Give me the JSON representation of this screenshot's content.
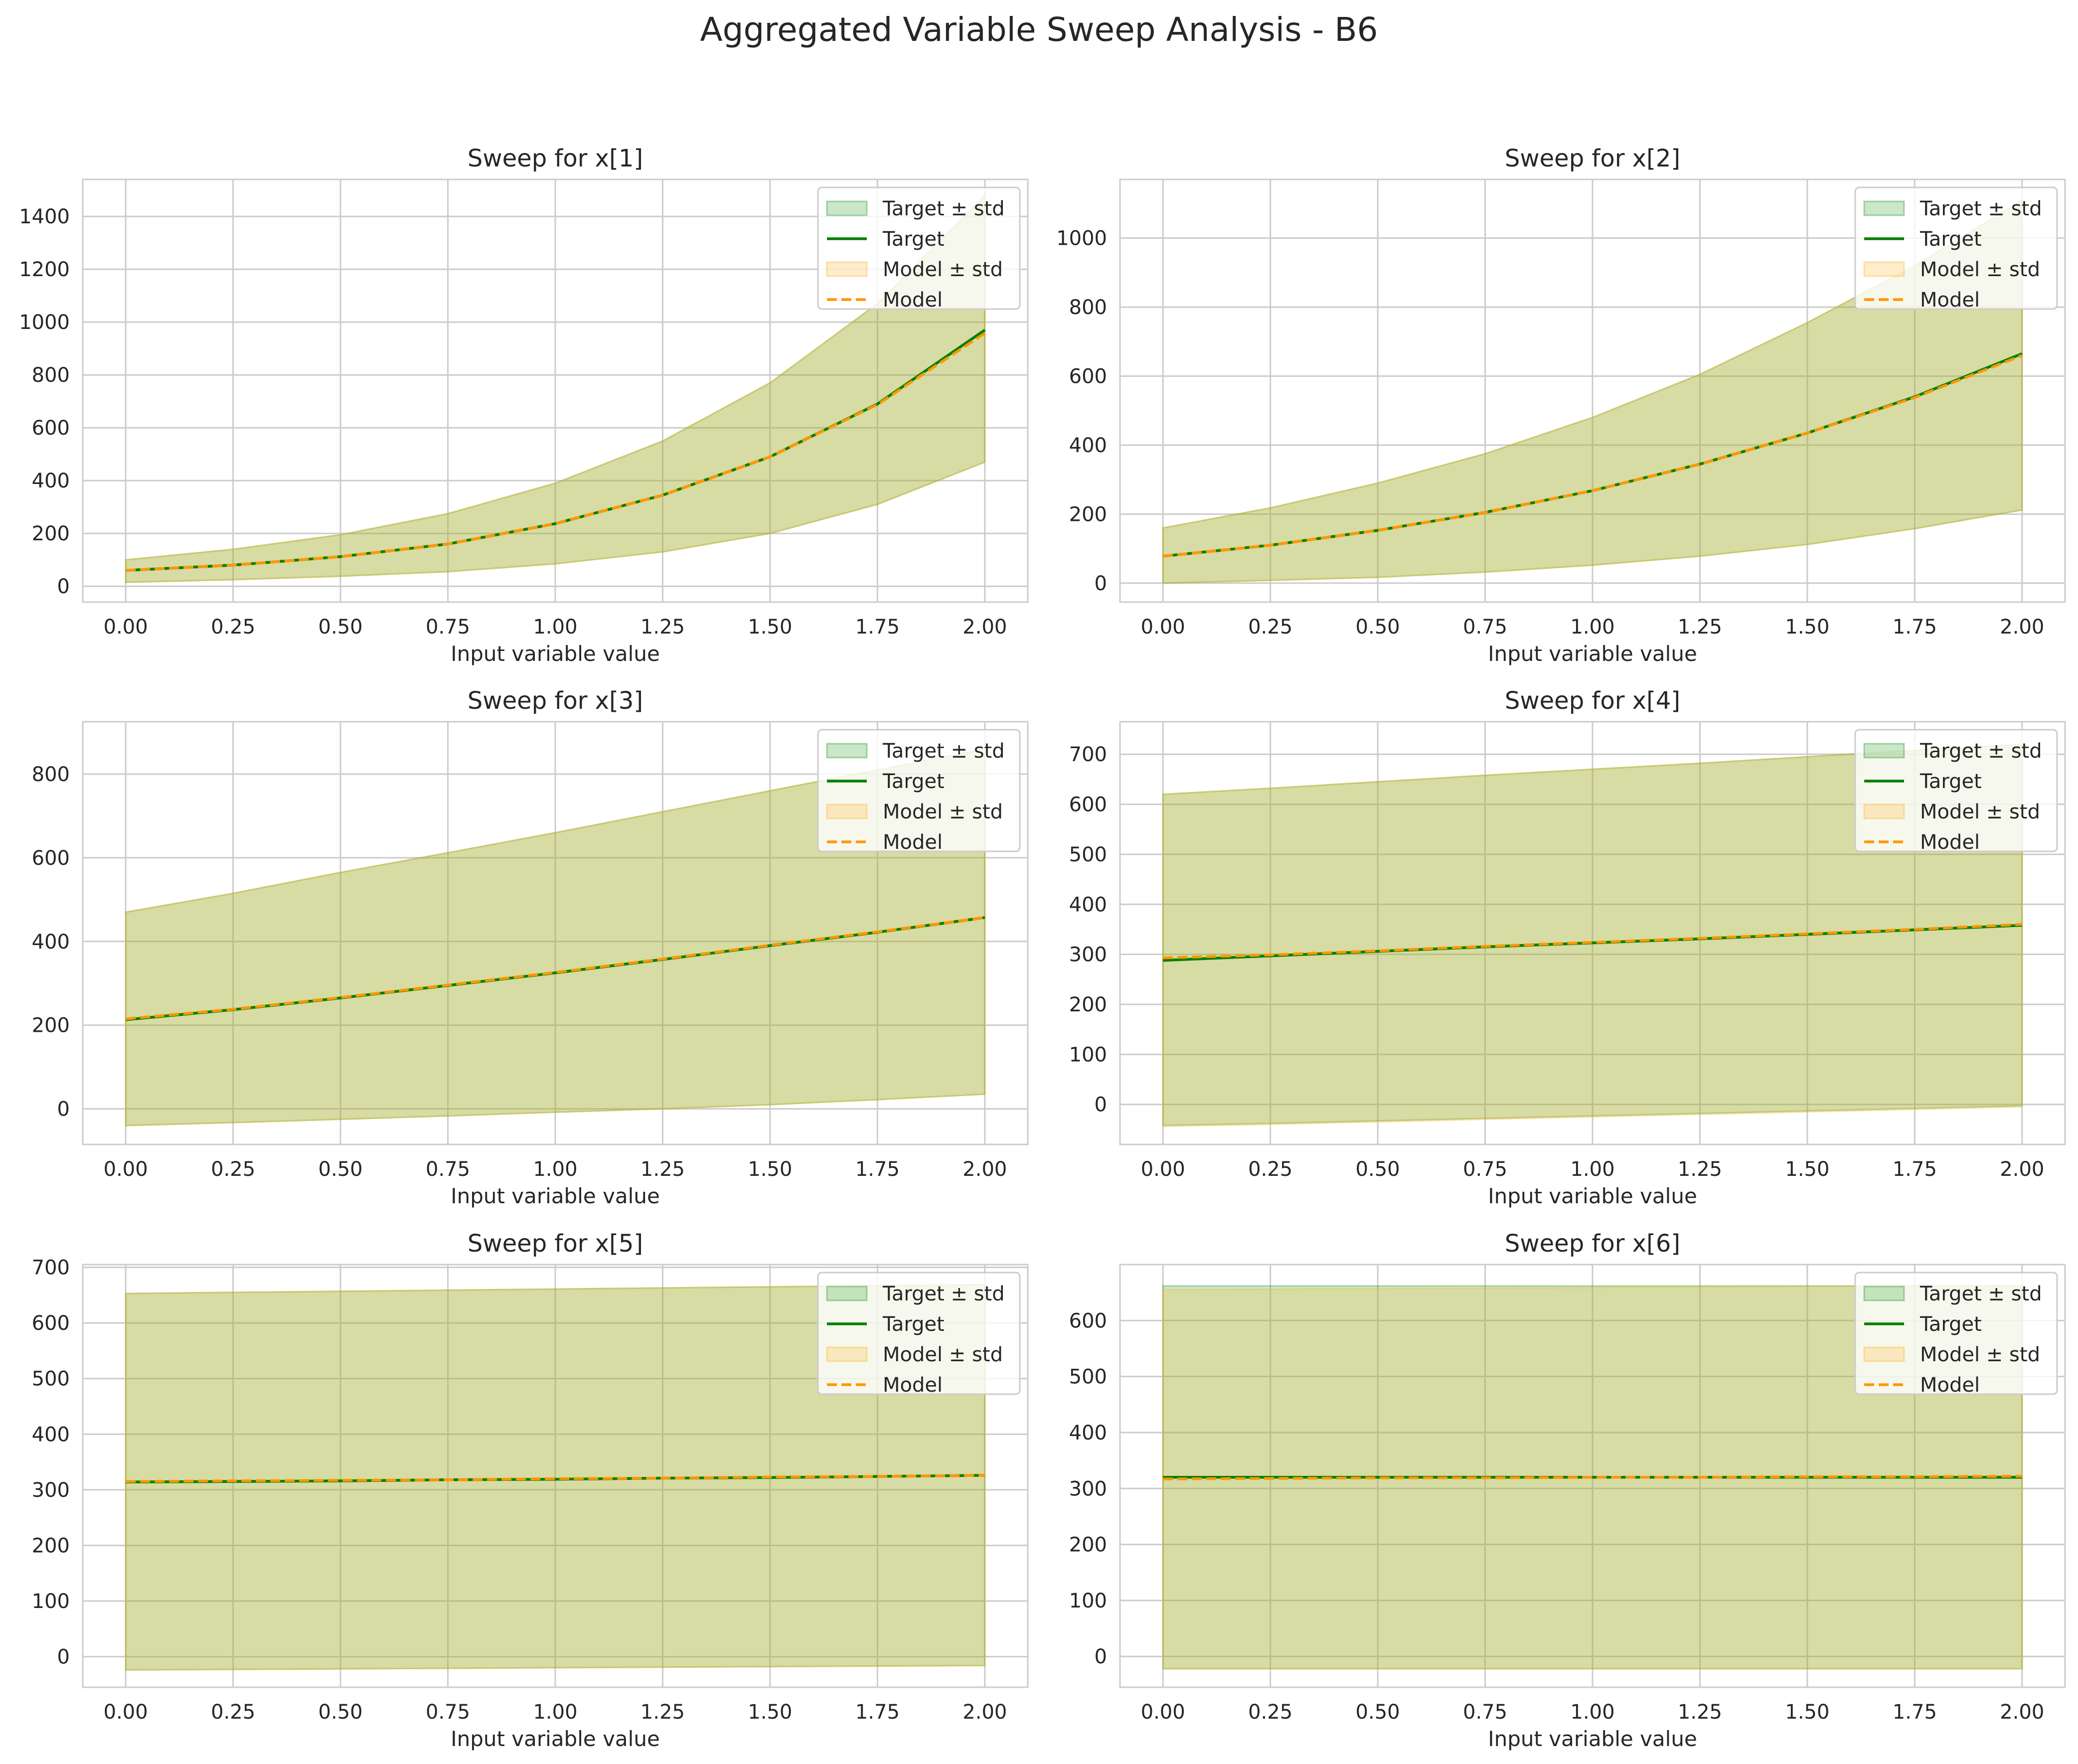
{
  "figure": {
    "title": "Aggregated Variable Sweep Analysis - B6"
  },
  "colors": {
    "target_line": "#008000",
    "target_band": "#2ca02c",
    "model_line": "#ff9800",
    "model_band": "#ffb732",
    "grid": "#cccccc",
    "axes_edge": "#cccccc"
  },
  "legend_labels": [
    "Target ± std",
    "Target",
    "Model ± std",
    "Model"
  ],
  "chart_data": [
    {
      "type": "line",
      "title": "Sweep for x[1]",
      "xlabel": "Input variable value",
      "ylabel": "",
      "grid": true,
      "legend": "upper right",
      "xlim": [
        -0.1,
        2.1
      ],
      "ylim": [
        -60,
        1540
      ],
      "xticks": [
        "0.00",
        "0.25",
        "0.50",
        "0.75",
        "1.00",
        "1.25",
        "1.50",
        "1.75",
        "2.00"
      ],
      "yticks": [
        "0",
        "200",
        "400",
        "600",
        "800",
        "1000",
        "1200",
        "1400"
      ],
      "x": [
        0,
        0.25,
        0.5,
        0.75,
        1.0,
        1.25,
        1.5,
        1.75,
        2.0
      ],
      "series": [
        {
          "name": "Target",
          "values": [
            60,
            80,
            112,
            160,
            237,
            345,
            490,
            690,
            970
          ]
        },
        {
          "name": "Model",
          "values": [
            60,
            80,
            112,
            160,
            237,
            345,
            490,
            688,
            958
          ]
        }
      ],
      "bands": [
        {
          "name": "Target ± std",
          "lower": [
            15,
            25,
            38,
            55,
            85,
            130,
            200,
            310,
            470
          ],
          "upper": [
            100,
            140,
            195,
            275,
            390,
            550,
            770,
            1070,
            1480
          ]
        },
        {
          "name": "Model ± std",
          "lower": [
            15,
            25,
            38,
            55,
            85,
            130,
            200,
            310,
            470
          ],
          "upper": [
            100,
            140,
            195,
            275,
            390,
            550,
            770,
            1070,
            1470
          ]
        }
      ]
    },
    {
      "type": "line",
      "title": "Sweep for x[2]",
      "xlabel": "Input variable value",
      "ylabel": "",
      "grid": true,
      "legend": "upper right",
      "xlim": [
        -0.1,
        2.1
      ],
      "ylim": [
        -55,
        1170
      ],
      "xticks": [
        "0.00",
        "0.25",
        "0.50",
        "0.75",
        "1.00",
        "1.25",
        "1.50",
        "1.75",
        "2.00"
      ],
      "yticks": [
        "0",
        "200",
        "400",
        "600",
        "800",
        "1000"
      ],
      "x": [
        0,
        0.25,
        0.5,
        0.75,
        1.0,
        1.25,
        1.5,
        1.75,
        2.0
      ],
      "series": [
        {
          "name": "Target",
          "values": [
            78,
            110,
            153,
            205,
            268,
            345,
            435,
            540,
            665
          ]
        },
        {
          "name": "Model",
          "values": [
            78,
            110,
            153,
            205,
            268,
            345,
            435,
            538,
            660
          ]
        }
      ],
      "bands": [
        {
          "name": "Target ± std",
          "lower": [
            0,
            8,
            17,
            32,
            52,
            78,
            112,
            158,
            212
          ],
          "upper": [
            160,
            218,
            290,
            375,
            480,
            605,
            755,
            920,
            1110
          ]
        },
        {
          "name": "Model ± std",
          "lower": [
            0,
            8,
            17,
            32,
            52,
            78,
            112,
            158,
            212
          ],
          "upper": [
            160,
            218,
            290,
            375,
            480,
            605,
            755,
            920,
            1105
          ]
        }
      ]
    },
    {
      "type": "line",
      "title": "Sweep for x[3]",
      "xlabel": "Input variable value",
      "ylabel": "",
      "grid": true,
      "legend": "upper right",
      "xlim": [
        -0.1,
        2.1
      ],
      "ylim": [
        -85,
        925
      ],
      "xticks": [
        "0.00",
        "0.25",
        "0.50",
        "0.75",
        "1.00",
        "1.25",
        "1.50",
        "1.75",
        "2.00"
      ],
      "yticks": [
        "0",
        "200",
        "400",
        "600",
        "800"
      ],
      "x": [
        0,
        0.25,
        0.5,
        0.75,
        1.0,
        1.25,
        1.5,
        1.75,
        2.0
      ],
      "series": [
        {
          "name": "Target",
          "values": [
            213,
            237,
            265,
            295,
            325,
            357,
            390,
            422,
            457
          ]
        },
        {
          "name": "Model",
          "values": [
            215,
            238,
            266,
            296,
            326,
            358,
            391,
            423,
            457
          ]
        }
      ],
      "bands": [
        {
          "name": "Target ± std",
          "lower": [
            -40,
            -33,
            -25,
            -17,
            -8,
            0,
            10,
            22,
            35
          ],
          "upper": [
            470,
            515,
            565,
            612,
            660,
            710,
            760,
            810,
            860
          ]
        },
        {
          "name": "Model ± std",
          "lower": [
            -40,
            -33,
            -25,
            -17,
            -8,
            0,
            10,
            22,
            35
          ],
          "upper": [
            470,
            515,
            565,
            612,
            660,
            710,
            760,
            810,
            860
          ]
        }
      ]
    },
    {
      "type": "line",
      "title": "Sweep for x[4]",
      "xlabel": "Input variable value",
      "ylabel": "",
      "grid": true,
      "legend": "upper right",
      "xlim": [
        -0.1,
        2.1
      ],
      "ylim": [
        -80,
        765
      ],
      "xticks": [
        "0.00",
        "0.25",
        "0.50",
        "0.75",
        "1.00",
        "1.25",
        "1.50",
        "1.75",
        "2.00"
      ],
      "yticks": [
        "0",
        "100",
        "200",
        "300",
        "400",
        "500",
        "600",
        "700"
      ],
      "x": [
        0,
        0.25,
        0.5,
        0.75,
        1.0,
        1.25,
        1.5,
        1.75,
        2.0
      ],
      "series": [
        {
          "name": "Target",
          "values": [
            288,
            297,
            306,
            315,
            323,
            331,
            340,
            349,
            358
          ]
        },
        {
          "name": "Model",
          "values": [
            293,
            299,
            307,
            316,
            324,
            332,
            341,
            350,
            360
          ]
        }
      ],
      "bands": [
        {
          "name": "Target ± std",
          "lower": [
            -42,
            -38,
            -33,
            -28,
            -23,
            -18,
            -13,
            -8,
            -3
          ],
          "upper": [
            620,
            632,
            645,
            658,
            670,
            682,
            695,
            708,
            720
          ]
        },
        {
          "name": "Model ± std",
          "lower": [
            -44,
            -40,
            -35,
            -30,
            -25,
            -20,
            -15,
            -10,
            -5
          ],
          "upper": [
            620,
            632,
            645,
            658,
            670,
            682,
            695,
            708,
            720
          ]
        }
      ]
    },
    {
      "type": "line",
      "title": "Sweep for x[5]",
      "xlabel": "Input variable value",
      "ylabel": "",
      "grid": true,
      "legend": "upper right",
      "xlim": [
        -0.1,
        2.1
      ],
      "ylim": [
        -55,
        705
      ],
      "xticks": [
        "0.00",
        "0.25",
        "0.50",
        "0.75",
        "1.00",
        "1.25",
        "1.50",
        "1.75",
        "2.00"
      ],
      "yticks": [
        "0",
        "100",
        "200",
        "300",
        "400",
        "500",
        "600",
        "700"
      ],
      "x": [
        0,
        0.25,
        0.5,
        0.75,
        1.0,
        1.25,
        1.5,
        1.75,
        2.0
      ],
      "series": [
        {
          "name": "Target",
          "values": [
            314,
            315,
            316,
            318,
            319,
            321,
            322,
            324,
            326
          ]
        },
        {
          "name": "Model",
          "values": [
            315,
            316,
            317,
            318,
            320,
            321,
            323,
            324,
            326
          ]
        }
      ],
      "bands": [
        {
          "name": "Target ± std",
          "lower": [
            -24,
            -23,
            -22,
            -21,
            -20,
            -19,
            -18,
            -17,
            -16
          ],
          "upper": [
            653,
            655,
            657,
            659,
            661,
            663,
            665,
            667,
            669
          ]
        },
        {
          "name": "Model ± std",
          "lower": [
            -24,
            -23,
            -22,
            -21,
            -20,
            -19,
            -18,
            -17,
            -16
          ],
          "upper": [
            653,
            655,
            657,
            659,
            661,
            663,
            665,
            667,
            669
          ]
        }
      ]
    },
    {
      "type": "line",
      "title": "Sweep for x[6]",
      "xlabel": "Input variable value",
      "ylabel": "",
      "grid": true,
      "legend": "upper right",
      "xlim": [
        -0.1,
        2.1
      ],
      "ylim": [
        -55,
        700
      ],
      "xticks": [
        "0.00",
        "0.25",
        "0.50",
        "0.75",
        "1.00",
        "1.25",
        "1.50",
        "1.75",
        "2.00"
      ],
      "yticks": [
        "0",
        "100",
        "200",
        "300",
        "400",
        "500",
        "600"
      ],
      "x": [
        0,
        0.25,
        0.5,
        0.75,
        1.0,
        1.25,
        1.5,
        1.75,
        2.0
      ],
      "series": [
        {
          "name": "Target",
          "values": [
            320,
            320,
            320,
            320,
            320,
            320,
            320,
            320,
            320
          ]
        },
        {
          "name": "Model",
          "values": [
            317,
            318,
            319,
            319,
            320,
            320,
            321,
            321,
            322
          ]
        }
      ],
      "bands": [
        {
          "name": "Target ± std",
          "lower": [
            -22,
            -22,
            -22,
            -22,
            -22,
            -22,
            -22,
            -22,
            -22
          ],
          "upper": [
            662,
            662,
            662,
            662,
            662,
            662,
            662,
            662,
            662
          ]
        },
        {
          "name": "Model ± std",
          "lower": [
            -22,
            -22,
            -22,
            -22,
            -22,
            -22,
            -22,
            -22,
            -22
          ],
          "upper": [
            655,
            656,
            657,
            658,
            659,
            660,
            661,
            662,
            663
          ]
        }
      ]
    }
  ]
}
